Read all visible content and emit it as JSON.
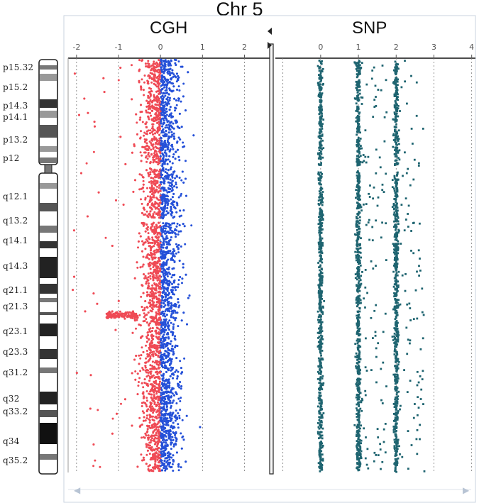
{
  "chart_data": {
    "title": "Chr 5",
    "panels": [
      {
        "name": "CGH",
        "type": "scatter",
        "x_axis_ticks": [
          "-2",
          "-1",
          "0",
          "1",
          "2"
        ],
        "xlim": [
          -2.2,
          2.6
        ],
        "series_colors": {
          "loss_side": "#ef4a55",
          "gain_side": "#2450d8"
        },
        "center_value": 0,
        "spread_sd": 0.22
      },
      {
        "name": "SNP",
        "type": "scatter",
        "x_axis_ticks": [
          "0",
          "1",
          "2",
          "3",
          "4"
        ],
        "xlim": [
          -1.2,
          4.1
        ],
        "series_color": "#1e6470",
        "genotype_levels": [
          0,
          1,
          2
        ]
      }
    ],
    "ideogram_bands": [
      "p15.32",
      "p15.2",
      "p14.3",
      "p14.1",
      "p13.2",
      "p12",
      "q12.1",
      "q13.2",
      "q14.1",
      "q14.3",
      "q21.1",
      "q21.3",
      "q23.1",
      "q23.3",
      "q31.2",
      "q32",
      "q33.2",
      "q34",
      "q35.2"
    ],
    "grid": "vertical dashed lines at ticks"
  }
}
